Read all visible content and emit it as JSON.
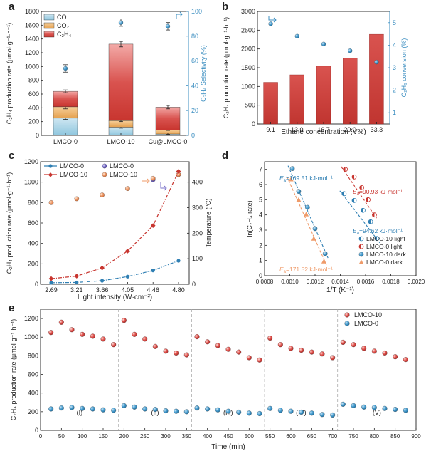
{
  "colors": {
    "co": "#a6d3e6",
    "co2": "#eeb46d",
    "c2h4": "#d9534f",
    "blue_axis": "#3d8fc1",
    "lmco0": "#2f7fb3",
    "lmco10": "#c8352f",
    "orange": "#ef9b6a",
    "violet": "#7a70c9"
  },
  "chart_data": [
    {
      "panel": "a",
      "type": "bar",
      "stacked": true,
      "categories": [
        "LMCO-0",
        "LMCO-10",
        "Cu@LMCO-0"
      ],
      "ylabel": "C2H4 production rate (μmol·g⁻¹·h⁻¹)",
      "ylim": [
        0,
        1800
      ],
      "yticks": [
        0,
        200,
        400,
        600,
        800,
        1000,
        1200,
        1400,
        1600,
        1800
      ],
      "series": [
        {
          "name": "CO",
          "values": [
            250,
            120,
            20
          ],
          "errors": [
            18,
            15,
            5
          ]
        },
        {
          "name": "CO2",
          "values": [
            165,
            95,
            60
          ],
          "errors": [
            30,
            15,
            8
          ]
        },
        {
          "name": "C2H4",
          "values": [
            225,
            1110,
            330
          ],
          "errors": [
            20,
            40,
            25
          ]
        }
      ],
      "y2label": "C2H4 Selectivity (%)",
      "y2lim": [
        0,
        100
      ],
      "y2ticks": [
        0,
        20,
        40,
        60,
        80,
        100
      ],
      "selectivity": {
        "values": [
          54,
          91,
          88
        ],
        "errors": [
          3,
          3,
          3
        ]
      },
      "legend": [
        "CO",
        "CO2",
        "C2H4"
      ]
    },
    {
      "panel": "b",
      "type": "bar",
      "categories": [
        "9.1",
        "13.0",
        "16.7",
        "20.0",
        "33.3"
      ],
      "xlabel": "Ethane concentration (V%)",
      "ylabel": "C2H4 production rate (μmol·g⁻¹·h⁻¹)",
      "ylim": [
        0,
        3000
      ],
      "yticks": [
        0,
        500,
        1000,
        1500,
        2000,
        2500,
        3000
      ],
      "values": [
        1110,
        1310,
        1540,
        1750,
        2390
      ],
      "y2label": "C2H6 conversion (%)",
      "y2lim": [
        0.5,
        5.5
      ],
      "y2ticks": [
        1,
        2,
        3,
        4,
        5
      ],
      "conversion": [
        4.95,
        4.4,
        4.05,
        3.75,
        3.25
      ]
    },
    {
      "panel": "c",
      "type": "line",
      "x": [
        "2.69",
        "3.21",
        "3.66",
        "4.05",
        "4.46",
        "4.80"
      ],
      "xlabel": "Light intensity (W·cm⁻²)",
      "ylabel": "C2H4 production rate (μmol·g⁻¹·h⁻¹)",
      "ylim": [
        0,
        1200
      ],
      "yticks": [
        0,
        200,
        400,
        600,
        800,
        1000,
        1200
      ],
      "y2label": "Temperature (ºC)",
      "y2lim": [
        0,
        480
      ],
      "y2ticks": [
        0,
        100,
        200,
        300,
        400
      ],
      "series": [
        {
          "name": "LMCO-0",
          "values": [
            15,
            18,
            35,
            75,
            135,
            230
          ]
        },
        {
          "name": "LMCO-10",
          "values": [
            55,
            80,
            160,
            325,
            575,
            1105
          ]
        }
      ],
      "temperature_series": [
        {
          "name": "LMCO-0",
          "values": [
            320,
            335,
            350,
            375,
            410,
            430
          ]
        },
        {
          "name": "LMCO-10",
          "values": [
            320,
            335,
            350,
            375,
            415,
            430
          ]
        }
      ]
    },
    {
      "panel": "d",
      "type": "scatter",
      "xlabel": "1/T (K⁻¹)",
      "ylabel": "ln(C2H4 rate)",
      "xlim": [
        0.0008,
        0.002
      ],
      "ylim": [
        0,
        7.5
      ],
      "xticks": [
        "0.0008",
        "0.0010",
        "0.0012",
        "0.0014",
        "0.0016",
        "0.0018",
        "0.0020"
      ],
      "yticks": [
        0,
        1,
        2,
        3,
        4,
        5,
        6,
        7
      ],
      "series": [
        {
          "name": "LMCO-10 light",
          "x": [
            0.00143,
            0.00151,
            0.00158,
            0.00164,
            0.00169
          ],
          "y": [
            5.4,
            4.95,
            4.3,
            3.55,
            2.45
          ]
        },
        {
          "name": "LMCO-0 light",
          "x": [
            0.00144,
            0.00151,
            0.00157,
            0.00162,
            0.00167
          ],
          "y": [
            7.0,
            6.5,
            5.8,
            5.0,
            4.0
          ]
        },
        {
          "name": "LMCO-10 dark",
          "x": [
            0.00102,
            0.00107,
            0.00114,
            0.0012,
            0.00128
          ],
          "y": [
            7.05,
            5.55,
            4.5,
            3.1,
            1.45
          ]
        },
        {
          "name": "LMCO-0 dark",
          "x": [
            0.00101,
            0.00107,
            0.00113,
            0.00119,
            0.00127
          ],
          "y": [
            6.35,
            5.0,
            4.05,
            2.45,
            0.95
          ]
        }
      ],
      "annotations": [
        "Ea=169.51 kJ·mol⁻¹",
        "Ea=90.93 kJ·mol⁻¹",
        "Ea=94.62 kJ·mol⁻¹",
        "Ea=171.52 kJ·mol⁻¹"
      ]
    },
    {
      "panel": "e",
      "type": "scatter",
      "xlabel": "Time (min)",
      "ylabel": "C2H4 production rate (μmol·g⁻¹·h⁻¹)",
      "xlim": [
        0,
        900
      ],
      "ylim": [
        0,
        1300
      ],
      "xticks": [
        0,
        50,
        100,
        150,
        200,
        250,
        300,
        350,
        400,
        450,
        500,
        550,
        600,
        650,
        700,
        750,
        800,
        850,
        900
      ],
      "yticks": [
        0,
        200,
        400,
        600,
        800,
        1000,
        1200
      ],
      "cycle_labels": [
        "(I)",
        "(II)",
        "(III)",
        "(IV)",
        "(V)"
      ],
      "cycle_boundaries": [
        187,
        362,
        537,
        712
      ],
      "series": [
        {
          "name": "LMCO-10",
          "x": [
            25,
            50,
            75,
            100,
            125,
            150,
            175,
            200,
            225,
            250,
            275,
            300,
            325,
            350,
            375,
            400,
            425,
            450,
            475,
            500,
            525,
            550,
            575,
            600,
            625,
            650,
            675,
            700,
            725,
            750,
            775,
            800,
            825,
            850,
            875
          ],
          "y": [
            1050,
            1160,
            1080,
            1030,
            1010,
            980,
            920,
            1180,
            1030,
            980,
            900,
            850,
            830,
            810,
            1005,
            950,
            910,
            870,
            840,
            780,
            755,
            990,
            920,
            880,
            860,
            840,
            820,
            780,
            945,
            920,
            880,
            850,
            830,
            790,
            760
          ]
        },
        {
          "name": "LMCO-0",
          "x": [
            25,
            50,
            75,
            100,
            125,
            150,
            175,
            200,
            225,
            250,
            275,
            300,
            325,
            350,
            375,
            400,
            425,
            450,
            475,
            500,
            525,
            550,
            575,
            600,
            625,
            650,
            675,
            700,
            725,
            750,
            775,
            800,
            825,
            850,
            875
          ],
          "y": [
            230,
            240,
            245,
            235,
            230,
            220,
            215,
            265,
            250,
            230,
            225,
            210,
            205,
            200,
            240,
            230,
            220,
            205,
            195,
            185,
            180,
            235,
            215,
            205,
            195,
            185,
            170,
            165,
            280,
            265,
            250,
            245,
            235,
            225,
            215
          ]
        }
      ]
    }
  ],
  "panels": {
    "a": {
      "letter": "a",
      "ylabel_main": "C",
      "ylabel_sub": "2",
      "ylabel_mid": "H",
      "ylabel_sub2": "4",
      "ylabel_rest": " production rate (μmol·g",
      "ylabel_sup": "-1",
      "ylabel_rest2": "·h",
      "ylabel_sup2": "-1",
      "ylabel_end": ")",
      "y2label": "C₂H₄ Selectivity (%)"
    },
    "b": {
      "letter": "b",
      "y2label": "C₂H₆ conversion (%)"
    },
    "c": {
      "letter": "c"
    },
    "d": {
      "letter": "d"
    },
    "e": {
      "letter": "e"
    }
  },
  "legend_a": [
    "CO",
    "CO₂",
    "C₂H₄"
  ],
  "legend_c": [
    "LMCO-0",
    "LMCO-0",
    "LMCO-10",
    "LMCO-10"
  ],
  "legend_d": [
    "LMCO-10 light",
    "LMCO-0 light",
    "LMCO-10 dark",
    "LMCO-0 dark"
  ],
  "legend_e": [
    "LMCO-10",
    "LMCO-0"
  ],
  "ylabel_rate": "C₂H₄ production rate (μmol·g⁻¹·h⁻¹)",
  "ylabel_lnrate": "ln(C₂H₄ rate)",
  "ylabel_temp": "Temperature (ºC)",
  "xlabel_b": "Ethane concentration (V%)",
  "xlabel_c": "Light intensity (W·cm⁻²)",
  "xlabel_d": "1/T (K⁻¹)",
  "xlabel_e": "Time (min)",
  "ea": [
    {
      "prefix": "E",
      "sub": "a",
      "value": "=169.51 kJ·mol⁻¹"
    },
    {
      "prefix": "E",
      "sub": "a",
      "value": "=90.93 kJ·mol⁻¹"
    },
    {
      "prefix": "E",
      "sub": "a",
      "value": "=94.62 kJ·mol⁻¹"
    },
    {
      "prefix": "E",
      "sub": "a",
      "value": "=171.52 kJ·mol⁻¹"
    }
  ]
}
